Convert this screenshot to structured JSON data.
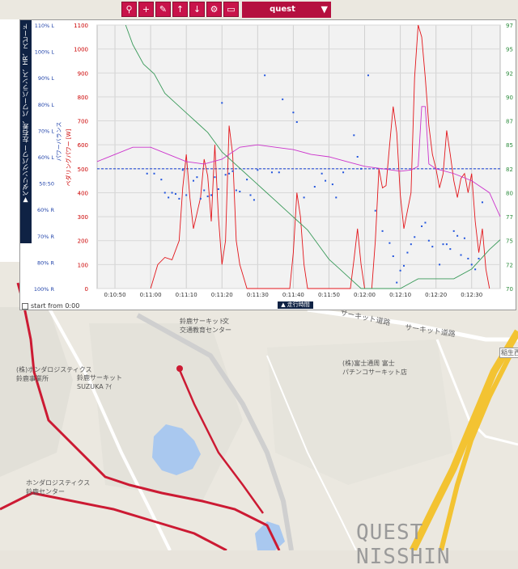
{
  "toolbar": {
    "buttons": [
      {
        "icon": "bike-icon",
        "glyph": "⚲"
      },
      {
        "icon": "plus-icon",
        "glyph": "+"
      },
      {
        "icon": "edit-icon",
        "glyph": "✎"
      },
      {
        "icon": "arrow-up-icon",
        "glyph": "↑"
      },
      {
        "icon": "arrow-down-icon",
        "glyph": "↓"
      },
      {
        "icon": "gear-icon",
        "glyph": "⚙"
      },
      {
        "icon": "panel-icon",
        "glyph": "▭"
      }
    ],
    "select_value": "quest",
    "select_arrow": "▼"
  },
  "side_bar": {
    "title": "▼ペダリングパワー 左右差、パワーバランス、HR、スピード"
  },
  "chart_controls": {
    "start_from_label": "start from 0:00",
    "time_toggle_label": "▲ 走行時間"
  },
  "chart_data": {
    "type": "line",
    "x_ticks": [
      "0:10:50",
      "0:11:00",
      "0:11:10",
      "0:11:20",
      "0:11:30",
      "0:11:40",
      "0:11:50",
      "0:12:00",
      "0:12:10",
      "0:12:20",
      "0:12:30"
    ],
    "x_range_seconds": [
      645,
      758
    ],
    "balance_axis": {
      "ticks": [
        "110% L",
        "100% L",
        "90% L",
        "80% L",
        "70% L",
        "60% L",
        "50:50",
        "60% R",
        "70% R",
        "80% R",
        "100% R"
      ],
      "label": "パワーバランス"
    },
    "power_axis": {
      "ticks": [
        "1100",
        "1000",
        "900",
        "800",
        "700",
        "600",
        "500",
        "400",
        "300",
        "200",
        "100",
        "0"
      ],
      "label": "ペダリングパワー [W]",
      "range": [
        0,
        1100
      ]
    },
    "right_axis": {
      "ticks": [
        "97",
        "95",
        "92",
        "90",
        "87",
        "85",
        "82",
        "80",
        "77",
        "75",
        "72",
        "70"
      ],
      "range": [
        70,
        97
      ]
    },
    "series": [
      {
        "color": "#e3161b",
        "values": [
          [
            660,
            0
          ],
          [
            662,
            100
          ],
          [
            664,
            130
          ],
          [
            666,
            120
          ],
          [
            668,
            200
          ],
          [
            669,
            420
          ],
          [
            670,
            560
          ],
          [
            671,
            380
          ],
          [
            672,
            250
          ],
          [
            674,
            380
          ],
          [
            675,
            540
          ],
          [
            676,
            470
          ],
          [
            677,
            280
          ],
          [
            678,
            600
          ],
          [
            679,
            300
          ],
          [
            680,
            100
          ],
          [
            681,
            200
          ],
          [
            682,
            680
          ],
          [
            683,
            560
          ],
          [
            684,
            200
          ],
          [
            685,
            100
          ],
          [
            686,
            50
          ],
          [
            687,
            0
          ],
          [
            699,
            0
          ],
          [
            700,
            150
          ],
          [
            701,
            400
          ],
          [
            702,
            300
          ],
          [
            703,
            100
          ],
          [
            704,
            0
          ],
          [
            716,
            0
          ],
          [
            717,
            120
          ],
          [
            718,
            250
          ],
          [
            719,
            100
          ],
          [
            720,
            0
          ],
          [
            722,
            0
          ],
          [
            723,
            200
          ],
          [
            724,
            500
          ],
          [
            725,
            420
          ],
          [
            726,
            430
          ],
          [
            727,
            600
          ],
          [
            728,
            760
          ],
          [
            729,
            650
          ],
          [
            730,
            390
          ],
          [
            731,
            250
          ],
          [
            733,
            400
          ],
          [
            734,
            880
          ],
          [
            735,
            1100
          ],
          [
            736,
            1050
          ],
          [
            737,
            880
          ],
          [
            738,
            680
          ],
          [
            739,
            560
          ],
          [
            740,
            500
          ],
          [
            741,
            420
          ],
          [
            742,
            480
          ],
          [
            743,
            660
          ],
          [
            744,
            560
          ],
          [
            745,
            450
          ],
          [
            746,
            380
          ],
          [
            747,
            460
          ],
          [
            748,
            480
          ],
          [
            749,
            400
          ],
          [
            750,
            480
          ],
          [
            751,
            280
          ],
          [
            752,
            150
          ],
          [
            753,
            250
          ],
          [
            754,
            80
          ],
          [
            755,
            0
          ]
        ]
      },
      {
        "color": "#cc33cc",
        "values": [
          [
            645,
            530
          ],
          [
            650,
            560
          ],
          [
            655,
            590
          ],
          [
            660,
            590
          ],
          [
            665,
            560
          ],
          [
            670,
            530
          ],
          [
            675,
            520
          ],
          [
            680,
            540
          ],
          [
            685,
            590
          ],
          [
            690,
            600
          ],
          [
            695,
            590
          ],
          [
            700,
            580
          ],
          [
            705,
            560
          ],
          [
            710,
            550
          ],
          [
            715,
            530
          ],
          [
            720,
            510
          ],
          [
            725,
            500
          ],
          [
            730,
            490
          ],
          [
            733,
            495
          ],
          [
            735,
            510
          ],
          [
            736,
            760
          ],
          [
            737,
            760
          ],
          [
            738,
            520
          ],
          [
            740,
            500
          ],
          [
            745,
            480
          ],
          [
            750,
            450
          ],
          [
            755,
            400
          ],
          [
            758,
            300
          ]
        ]
      },
      {
        "color": "#3a9a5a",
        "right_values": [
          [
            653,
            97
          ],
          [
            655,
            95
          ],
          [
            658,
            93
          ],
          [
            661,
            92
          ],
          [
            664,
            90
          ],
          [
            667,
            89
          ],
          [
            670,
            88
          ],
          [
            673,
            87
          ],
          [
            676,
            86
          ],
          [
            678,
            85
          ],
          [
            680,
            84
          ],
          [
            683,
            83
          ],
          [
            686,
            82
          ],
          [
            689,
            81
          ],
          [
            692,
            80
          ],
          [
            695,
            79
          ],
          [
            698,
            78
          ],
          [
            701,
            77
          ],
          [
            704,
            76
          ],
          [
            706,
            75
          ],
          [
            708,
            74
          ],
          [
            710,
            73
          ],
          [
            713,
            72
          ],
          [
            716,
            71
          ],
          [
            719,
            70
          ],
          [
            730,
            70
          ],
          [
            735,
            71
          ],
          [
            740,
            71
          ],
          [
            745,
            71
          ],
          [
            750,
            72
          ],
          [
            755,
            74
          ],
          [
            758,
            75
          ]
        ]
      }
    ],
    "balance_points": [
      [
        659,
        -4
      ],
      [
        661,
        -4
      ],
      [
        663,
        -9
      ],
      [
        664,
        -20
      ],
      [
        665,
        -24
      ],
      [
        666,
        -20
      ],
      [
        667,
        -21
      ],
      [
        668,
        -25
      ],
      [
        669,
        -1
      ],
      [
        670,
        -22
      ],
      [
        672,
        -10
      ],
      [
        673,
        -7
      ],
      [
        674,
        -25
      ],
      [
        675,
        -18
      ],
      [
        676,
        -23
      ],
      [
        677,
        -22
      ],
      [
        678,
        -7
      ],
      [
        679,
        -17
      ],
      [
        680,
        55
      ],
      [
        681,
        -5
      ],
      [
        682,
        -4
      ],
      [
        683,
        -2
      ],
      [
        684,
        -18
      ],
      [
        685,
        -19
      ],
      [
        687,
        -9
      ],
      [
        688,
        -22
      ],
      [
        689,
        -26
      ],
      [
        690,
        -1
      ],
      [
        692,
        78
      ],
      [
        694,
        -3
      ],
      [
        696,
        -3
      ],
      [
        697,
        58
      ],
      [
        700,
        47
      ],
      [
        701,
        39
      ],
      [
        703,
        -24
      ],
      [
        706,
        -15
      ],
      [
        708,
        -4
      ],
      [
        709,
        -10
      ],
      [
        711,
        -13
      ],
      [
        712,
        -24
      ],
      [
        714,
        -3
      ],
      [
        717,
        28
      ],
      [
        718,
        10
      ],
      [
        719,
        0
      ],
      [
        721,
        78
      ],
      [
        723,
        -35
      ],
      [
        725,
        -52
      ],
      [
        727,
        -62
      ],
      [
        728,
        -73
      ],
      [
        729,
        -95
      ],
      [
        730,
        -85
      ],
      [
        731,
        -81
      ],
      [
        732,
        -70
      ],
      [
        733,
        -63
      ],
      [
        734,
        -57
      ],
      [
        736,
        -48
      ],
      [
        737,
        -45
      ],
      [
        738,
        -60
      ],
      [
        739,
        -65
      ],
      [
        741,
        -80
      ],
      [
        742,
        -63
      ],
      [
        743,
        -63
      ],
      [
        744,
        -67
      ],
      [
        745,
        -52
      ],
      [
        746,
        -56
      ],
      [
        747,
        -72
      ],
      [
        748,
        -58
      ],
      [
        749,
        -75
      ],
      [
        750,
        -80
      ],
      [
        751,
        -84
      ],
      [
        752,
        -75
      ],
      [
        753,
        -28
      ]
    ],
    "reference_line": {
      "value": 500,
      "color": "#2b4fd6"
    }
  },
  "map": {
    "labels": [
      {
        "text": "(株)ホンダロジスティクス\n鈴鹿事業所",
        "name": "label-honda-logistics"
      },
      {
        "text": "鈴鹿サーキット\nSUZUKA ｱｲ",
        "name": "label-suzuka-circuit"
      },
      {
        "text": "鈴鹿サーキット\n交通教育センター",
        "name": "label-traffic-center"
      },
      {
        "text": "(株)富士通周 富士\nパチンコサーキット店",
        "name": "label-pachinko"
      },
      {
        "text": "ホンダロジスティクス\n鈴鹿センター",
        "name": "label-honda-center"
      },
      {
        "text": "サーキット道路",
        "name": "road-circuit-1"
      },
      {
        "text": "サーキット道路",
        "name": "road-circuit-2"
      },
      {
        "text": "稲生西",
        "name": "label-inou-nishi"
      },
      {
        "text": "文",
        "name": "school-icon"
      }
    ],
    "watermark": "QUEST NISSHIN"
  }
}
